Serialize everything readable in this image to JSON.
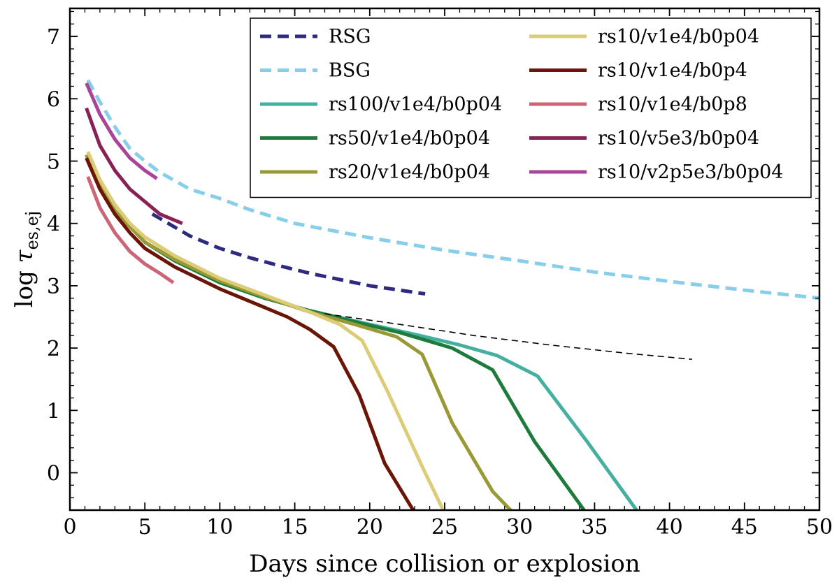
{
  "chart_data": {
    "type": "line",
    "title": "",
    "xlabel": "Days since collision or explosion",
    "ylabel_prefix": "log ",
    "ylabel_symbol": "τ",
    "ylabel_subscript": "es,ej",
    "xlim": [
      0,
      50
    ],
    "ylim": [
      -0.6,
      7.45
    ],
    "x_ticks": [
      0,
      5,
      10,
      15,
      20,
      25,
      30,
      35,
      40,
      45,
      50
    ],
    "y_ticks": [
      0,
      1,
      2,
      3,
      4,
      5,
      6,
      7
    ],
    "grid": false,
    "legend_position": "top-right",
    "series": [
      {
        "name": "RSG",
        "color": "#2e2a80",
        "dash": "dashed",
        "x": [
          5.5,
          8,
          10,
          12,
          14,
          16,
          18,
          20,
          22,
          23.7
        ],
        "y": [
          4.15,
          3.8,
          3.6,
          3.45,
          3.32,
          3.2,
          3.1,
          3.0,
          2.93,
          2.87
        ]
      },
      {
        "name": "BSG",
        "color": "#87ceeb",
        "dash": "dashed",
        "x": [
          1.2,
          2,
          3,
          4,
          5,
          6,
          8,
          10,
          12,
          15,
          20,
          25,
          30,
          35,
          40,
          45,
          50
        ],
        "y": [
          6.3,
          5.95,
          5.55,
          5.2,
          5.0,
          4.82,
          4.55,
          4.4,
          4.22,
          4.0,
          3.77,
          3.57,
          3.4,
          3.22,
          3.07,
          2.93,
          2.8
        ]
      },
      {
        "name": "rs100/v1e4/b0p04",
        "color": "#46b0a0",
        "dash": "solid",
        "x": [
          1.1,
          2,
          3,
          4,
          5,
          7,
          10,
          13,
          16,
          20,
          23,
          26,
          28.5,
          31.2,
          34.5,
          37.8
        ],
        "y": [
          5.1,
          4.6,
          4.2,
          3.95,
          3.7,
          3.4,
          3.05,
          2.8,
          2.6,
          2.38,
          2.22,
          2.05,
          1.88,
          1.55,
          0.5,
          -0.6
        ]
      },
      {
        "name": "rs50/v1e4/b0p04",
        "color": "#1d7c3c",
        "dash": "solid",
        "x": [
          1.1,
          2,
          3,
          4,
          5,
          7,
          10,
          13,
          16,
          19,
          22,
          25.5,
          28.2,
          31,
          34.3
        ],
        "y": [
          5.1,
          4.6,
          4.2,
          3.95,
          3.7,
          3.4,
          3.05,
          2.8,
          2.6,
          2.42,
          2.25,
          2.0,
          1.65,
          0.5,
          -0.6
        ]
      },
      {
        "name": "rs20/v1e4/b0p04",
        "color": "#999935",
        "dash": "solid",
        "x": [
          1.1,
          2,
          3,
          4,
          5,
          7,
          10,
          13,
          16,
          19,
          21.8,
          23.5,
          25.5,
          28.2,
          29.4
        ],
        "y": [
          5.1,
          4.6,
          4.2,
          3.95,
          3.7,
          3.42,
          3.08,
          2.82,
          2.58,
          2.38,
          2.18,
          1.9,
          0.8,
          -0.3,
          -0.6
        ]
      },
      {
        "name": "rs10/v1e4/b0p04",
        "color": "#ddcc77",
        "dash": "solid",
        "x": [
          1.2,
          2,
          3,
          4,
          5,
          7,
          10,
          13,
          16,
          18,
          19.5,
          21.2,
          23.5,
          24.9
        ],
        "y": [
          5.15,
          4.7,
          4.3,
          4.0,
          3.78,
          3.48,
          3.12,
          2.85,
          2.58,
          2.38,
          2.12,
          1.3,
          0.1,
          -0.6
        ]
      },
      {
        "name": "rs10/v1e4/b0p4",
        "color": "#6a1505",
        "dash": "solid",
        "x": [
          1.1,
          2,
          3,
          4,
          5,
          7,
          10,
          13,
          14.5,
          16,
          17.6,
          19.3,
          21,
          22.9
        ],
        "y": [
          5.05,
          4.55,
          4.15,
          3.85,
          3.6,
          3.3,
          2.95,
          2.65,
          2.5,
          2.3,
          2.02,
          1.25,
          0.15,
          -0.6
        ]
      },
      {
        "name": "rs10/v1e4/b0p8",
        "color": "#cc6677",
        "dash": "solid",
        "x": [
          1.2,
          2,
          3,
          4,
          5,
          6,
          6.9
        ],
        "y": [
          4.75,
          4.25,
          3.85,
          3.55,
          3.35,
          3.2,
          3.05
        ]
      },
      {
        "name": "rs10/v5e3/b0p04",
        "color": "#882255",
        "dash": "solid",
        "x": [
          1.1,
          2,
          3,
          4,
          5,
          6,
          7.5
        ],
        "y": [
          5.85,
          5.25,
          4.85,
          4.55,
          4.35,
          4.15,
          4.0
        ]
      },
      {
        "name": "rs10/v2p5e3/b0p04",
        "color": "#aa4499",
        "dash": "solid",
        "x": [
          1.1,
          2,
          3,
          4,
          5,
          5.8
        ],
        "y": [
          6.25,
          5.75,
          5.35,
          5.05,
          4.85,
          4.72
        ]
      },
      {
        "name": "",
        "color": "#000000",
        "dash": "thin-dashed",
        "x": [
          17,
          22,
          27,
          32,
          37,
          41.5
        ],
        "y": [
          2.55,
          2.38,
          2.2,
          2.05,
          1.92,
          1.82
        ]
      }
    ]
  }
}
